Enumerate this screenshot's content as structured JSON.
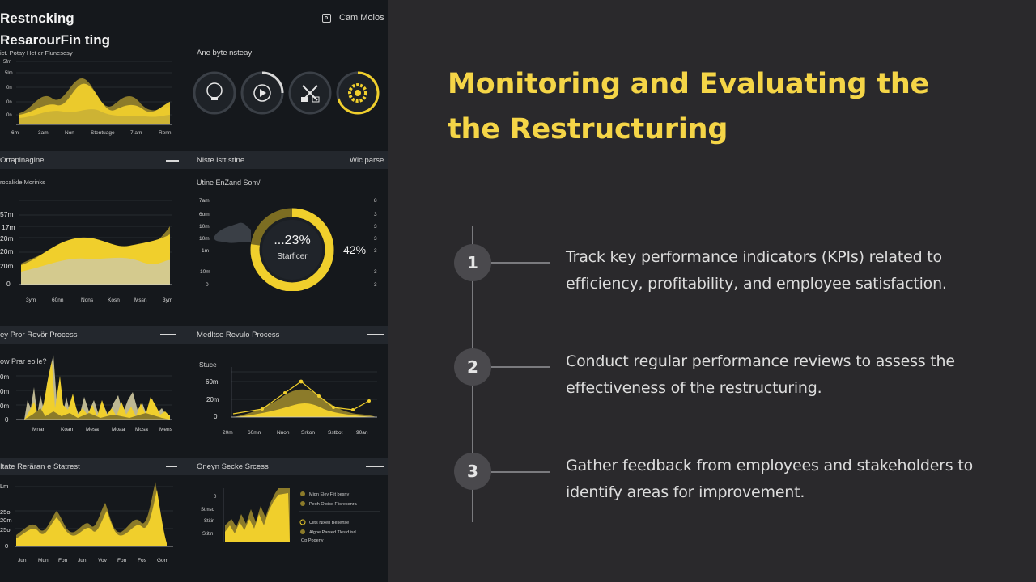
{
  "slide": {
    "title": "Monitoring and Evaluating the the Restructuring",
    "steps": [
      {
        "number": "1",
        "text": "Track key performance indicators (KPIs) related to efficiency, profitability, and employee satisfaction."
      },
      {
        "number": "2",
        "text": "Conduct regular performance reviews to assess the effectiveness of the restructuring."
      },
      {
        "number": "3",
        "text": "Gather feedback from employees and stakeholders to identify areas for improvement."
      }
    ]
  },
  "dashboard": {
    "app_title": "Restncking",
    "user_label": "Cam Molos",
    "panel1": {
      "title": "ResarourFin ting",
      "subtitle": "ict. Potay Het er Flunesesy",
      "y_ticks": [
        "5fm",
        "5lm",
        "0n",
        "0n",
        "0n",
        "0n"
      ],
      "x_ticks": [
        "6m",
        "3am",
        "Non",
        "Stentuage",
        "7 am",
        "Renn"
      ]
    },
    "panel2": {
      "title": "Ane byte nsteay"
    },
    "panel3": {
      "title": "Ortapinagine",
      "subtitle": "rocalikle Morinks",
      "y_ticks": [
        "57m",
        "17m",
        "20m",
        "20m",
        "20m",
        "0"
      ],
      "x_ticks": [
        "3ym",
        "60nn",
        "Nons",
        "Kosn",
        "Mssn",
        "3ym"
      ]
    },
    "panel4": {
      "title": "Niste istt stine",
      "action": "Wic parse",
      "subtitle": "Utine EnZand Som/",
      "y_ticks": [
        "7am",
        "6om",
        "10m",
        "10m",
        "1m",
        "10m",
        "0"
      ],
      "right_ticks": [
        "8",
        "3",
        "3",
        "3",
        "3",
        "3",
        "3"
      ],
      "donut_value": "...23%",
      "donut_label": "Starficer",
      "side_value": "42%",
      "donut_fraction": 0.77
    },
    "panel5": {
      "title": "ey Pror Revör Process",
      "subtitle": "ow Prar eolle?",
      "y_ticks": [
        "0m",
        "0m",
        "0m",
        "0"
      ],
      "x_ticks": [
        "Mnan",
        "Koan",
        "Mesa",
        "Moaa",
        "Mosa",
        "Mens"
      ]
    },
    "panel6": {
      "title": "Medltse Revulo Process",
      "subtitle": "Stuce",
      "y_ticks": [
        "60m",
        "20m",
        "0"
      ],
      "x_ticks": [
        "20m",
        "60mn",
        "Nnon",
        "Srkon",
        "Sstbot",
        "90an"
      ]
    },
    "panel7": {
      "title": "Itate Reräran e Statrest",
      "y_ticks": [
        "Lm",
        "25o",
        "25o",
        "20m",
        "0"
      ],
      "x_ticks": [
        "Jun",
        "Mun",
        "Fon",
        "Jun",
        "Vov",
        "Fon",
        "Fos",
        "Gom"
      ]
    },
    "panel8": {
      "title": "Oneyn Secke Srcess",
      "y_ticks": [
        "0",
        "Stmso",
        "Stitin",
        "Stitin"
      ],
      "legend": [
        "Mign Eley Flit besny",
        "Peoh Oloice Flisrecenra",
        "Ulits Nixen Besense",
        "Algne Parsed Tlesid isd",
        "Op Pogeny"
      ]
    }
  },
  "colors": {
    "accent": "#f5d547",
    "chart_yellow": "#f0cf2c",
    "chart_olive": "#8c7b2a",
    "background": "#2a292c"
  }
}
